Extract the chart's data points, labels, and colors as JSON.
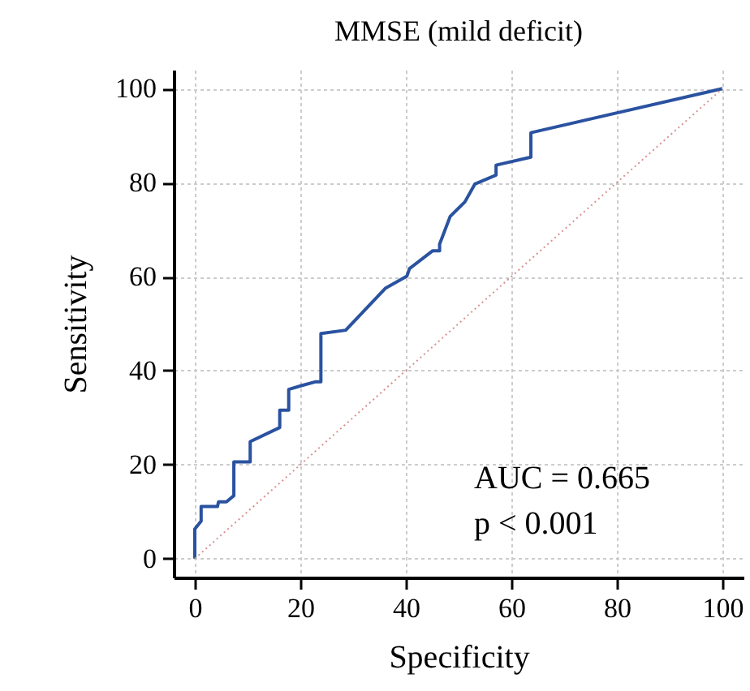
{
  "chart_data": {
    "type": "line",
    "title": "MMSE (mild deficit)",
    "xlabel": "Specificity",
    "ylabel": "Sensitivity",
    "series": [
      {
        "color": "#2a52a0",
        "line_style": "solid",
        "x": [
          0,
          0,
          1.2,
          1.2,
          4.3,
          4.5,
          6.0,
          7.4,
          7.4,
          10.5,
          10.5,
          16.1,
          16.1,
          17.8,
          17.8,
          20.2,
          22.8,
          23.9,
          23.9,
          28.6,
          36.1,
          40.2,
          40.7,
          45.1,
          46.4,
          46.4,
          48.4,
          51.2,
          53.1,
          57.1,
          57.1,
          63.7,
          63.7,
          100
        ],
        "values": [
          0,
          6.3,
          8,
          11.1,
          11.1,
          12.1,
          12.1,
          13.4,
          20.6,
          20.6,
          24.9,
          27.9,
          31.6,
          31.6,
          36,
          36.8,
          37.6,
          37.6,
          47.9,
          48.6,
          57.5,
          60.1,
          61.7,
          65.5,
          65.5,
          66.9,
          72.8,
          75.9,
          79.7,
          81.6,
          83.7,
          85.4,
          90.6,
          100
        ]
      },
      {
        "color": "#d89090",
        "line_style": "dotted",
        "x": [
          0,
          100
        ],
        "values": [
          0,
          100
        ]
      }
    ],
    "xlim": [
      -4,
      104
    ],
    "ylim": [
      -4,
      104
    ],
    "xticks": [
      0,
      20,
      40,
      60,
      80,
      100
    ],
    "yticks": [
      0,
      20,
      40,
      60,
      80,
      100
    ],
    "grid": true,
    "annotations": [
      "AUC = 0.665",
      "p < 0.001"
    ]
  }
}
